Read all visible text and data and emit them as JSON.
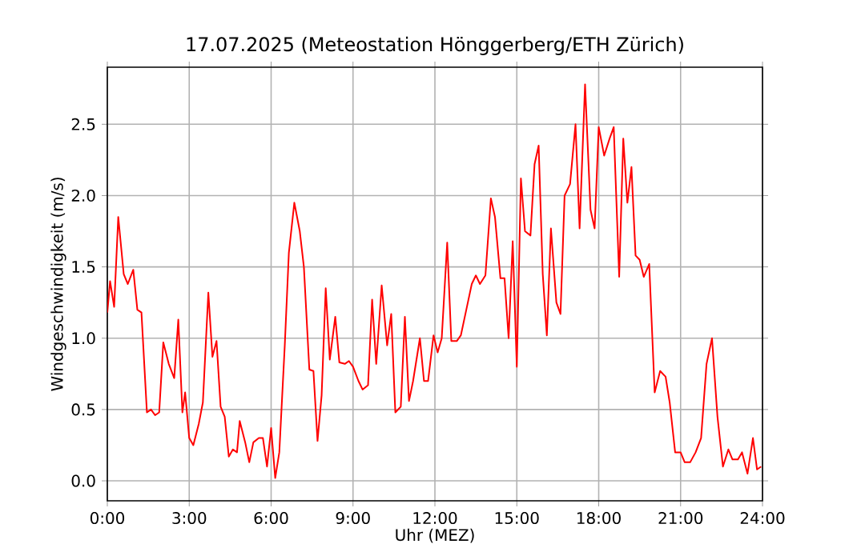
{
  "chart_data": {
    "type": "line",
    "title": "17.07.2025  (Meteostation Hönggerberg/ETH Zürich)",
    "xlabel": "Uhr (MEZ)",
    "ylabel": "Windgeschwindigkeit (m/s)",
    "x": [
      0,
      0.1,
      0.25,
      0.4,
      0.6,
      0.75,
      0.95,
      1.1,
      1.25,
      1.45,
      1.6,
      1.75,
      1.9,
      2.05,
      2.25,
      2.45,
      2.6,
      2.75,
      2.85,
      3.0,
      3.15,
      3.35,
      3.5,
      3.7,
      3.85,
      4.0,
      4.15,
      4.3,
      4.45,
      4.6,
      4.75,
      4.85,
      5.05,
      5.2,
      5.35,
      5.55,
      5.7,
      5.85,
      6.0,
      6.15,
      6.3,
      6.5,
      6.65,
      6.85,
      7.05,
      7.2,
      7.4,
      7.55,
      7.7,
      7.85,
      8.0,
      8.15,
      8.35,
      8.5,
      8.7,
      8.85,
      9.0,
      9.2,
      9.35,
      9.55,
      9.7,
      9.85,
      10.05,
      10.25,
      10.4,
      10.55,
      10.75,
      10.9,
      11.05,
      11.2,
      11.45,
      11.6,
      11.75,
      11.95,
      12.1,
      12.25,
      12.45,
      12.6,
      12.8,
      12.95,
      13.15,
      13.35,
      13.5,
      13.65,
      13.85,
      14.05,
      14.2,
      14.4,
      14.55,
      14.7,
      14.85,
      15.0,
      15.15,
      15.3,
      15.5,
      15.65,
      15.8,
      15.95,
      16.1,
      16.25,
      16.45,
      16.6,
      16.75,
      16.95,
      17.15,
      17.3,
      17.5,
      17.7,
      17.85,
      18.0,
      18.2,
      18.4,
      18.55,
      18.75,
      18.9,
      19.05,
      19.2,
      19.35,
      19.5,
      19.65,
      19.85,
      20.05,
      20.25,
      20.45,
      20.6,
      20.8,
      21.0,
      21.15,
      21.35,
      21.55,
      21.75,
      21.95,
      22.15,
      22.35,
      22.55,
      22.75,
      22.9,
      23.1,
      23.25,
      23.45,
      23.65,
      23.8,
      23.95
    ],
    "series": [
      {
        "color": "#ff0000",
        "values": [
          1.18,
          1.4,
          1.22,
          1.85,
          1.45,
          1.38,
          1.48,
          1.2,
          1.18,
          0.48,
          0.5,
          0.46,
          0.48,
          0.97,
          0.82,
          0.72,
          1.13,
          0.48,
          0.62,
          0.3,
          0.25,
          0.4,
          0.55,
          1.32,
          0.87,
          0.98,
          0.52,
          0.45,
          0.17,
          0.22,
          0.2,
          0.42,
          0.27,
          0.13,
          0.27,
          0.3,
          0.3,
          0.1,
          0.37,
          0.02,
          0.2,
          0.95,
          1.6,
          1.95,
          1.75,
          1.5,
          0.78,
          0.77,
          0.28,
          0.6,
          1.35,
          0.85,
          1.15,
          0.83,
          0.82,
          0.84,
          0.8,
          0.7,
          0.64,
          0.67,
          1.27,
          0.82,
          1.37,
          0.95,
          1.17,
          0.48,
          0.52,
          1.15,
          0.56,
          0.7,
          1.0,
          0.7,
          0.7,
          1.02,
          0.9,
          1.0,
          1.67,
          0.98,
          0.98,
          1.02,
          1.2,
          1.38,
          1.44,
          1.38,
          1.44,
          1.98,
          1.85,
          1.42,
          1.42,
          1.0,
          1.68,
          0.8,
          2.12,
          1.75,
          1.72,
          2.22,
          2.35,
          1.45,
          1.02,
          1.77,
          1.25,
          1.17,
          2.0,
          2.08,
          2.5,
          1.77,
          2.78,
          1.9,
          1.77,
          2.48,
          2.28,
          2.4,
          2.48,
          1.43,
          2.4,
          1.95,
          2.2,
          1.58,
          1.55,
          1.43,
          1.52,
          0.62,
          0.77,
          0.73,
          0.55,
          0.2,
          0.2,
          0.13,
          0.13,
          0.2,
          0.3,
          0.82,
          1.0,
          0.45,
          0.1,
          0.22,
          0.15,
          0.15,
          0.2,
          0.05,
          0.3,
          0.08,
          0.1
        ]
      }
    ],
    "xlim": [
      0,
      24
    ],
    "ylim": [
      -0.14,
      2.9
    ],
    "xticks": [
      {
        "value": 0,
        "label": "0:00"
      },
      {
        "value": 3,
        "label": "3:00"
      },
      {
        "value": 6,
        "label": "6:00"
      },
      {
        "value": 9,
        "label": "9:00"
      },
      {
        "value": 12,
        "label": "12:00"
      },
      {
        "value": 15,
        "label": "15:00"
      },
      {
        "value": 18,
        "label": "18:00"
      },
      {
        "value": 21,
        "label": "21:00"
      },
      {
        "value": 24,
        "label": "24:00"
      }
    ],
    "yticks": [
      {
        "value": 0,
        "label": "0.0"
      },
      {
        "value": 0.5,
        "label": "0.5"
      },
      {
        "value": 1,
        "label": "1.0"
      },
      {
        "value": 1.5,
        "label": "1.5"
      },
      {
        "value": 2,
        "label": "2.0"
      },
      {
        "value": 2.5,
        "label": "2.5"
      }
    ],
    "grid": true,
    "marker": "none",
    "line_style": "solid"
  }
}
